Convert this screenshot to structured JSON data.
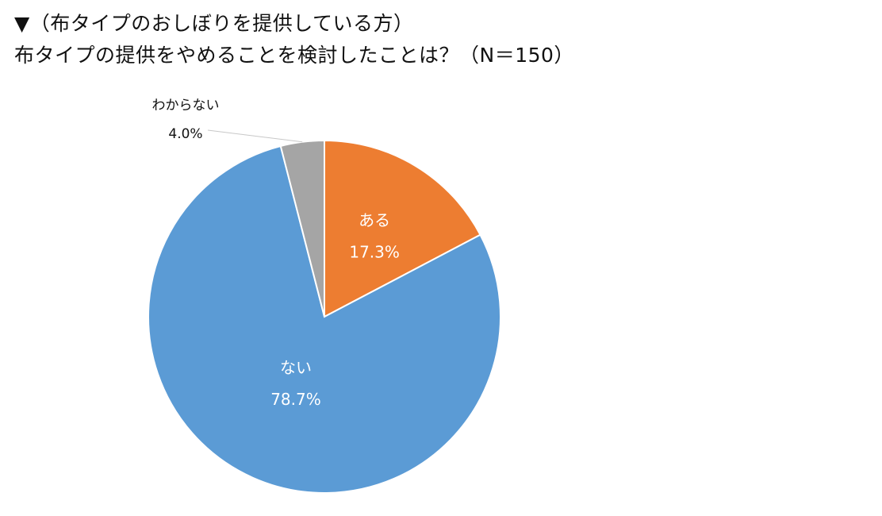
{
  "chart_data": {
    "type": "pie",
    "title_line1": "▼（布タイプのおしぼりを提供している方）",
    "title_line2": "布タイプの提供をやめることを検討したことは？（N＝150）",
    "slices": [
      {
        "label": "ある",
        "value": 17.3,
        "value_text": "17.3%",
        "color": "#ED7D31",
        "label_position": "inside"
      },
      {
        "label": "ない",
        "value": 78.7,
        "value_text": "78.7%",
        "color": "#5B9BD5",
        "label_position": "inside"
      },
      {
        "label": "わからない",
        "value": 4.0,
        "value_text": "4.0%",
        "color": "#A5A5A5",
        "label_position": "outside"
      }
    ],
    "start_angle_deg": 0,
    "direction": "clockwise"
  }
}
